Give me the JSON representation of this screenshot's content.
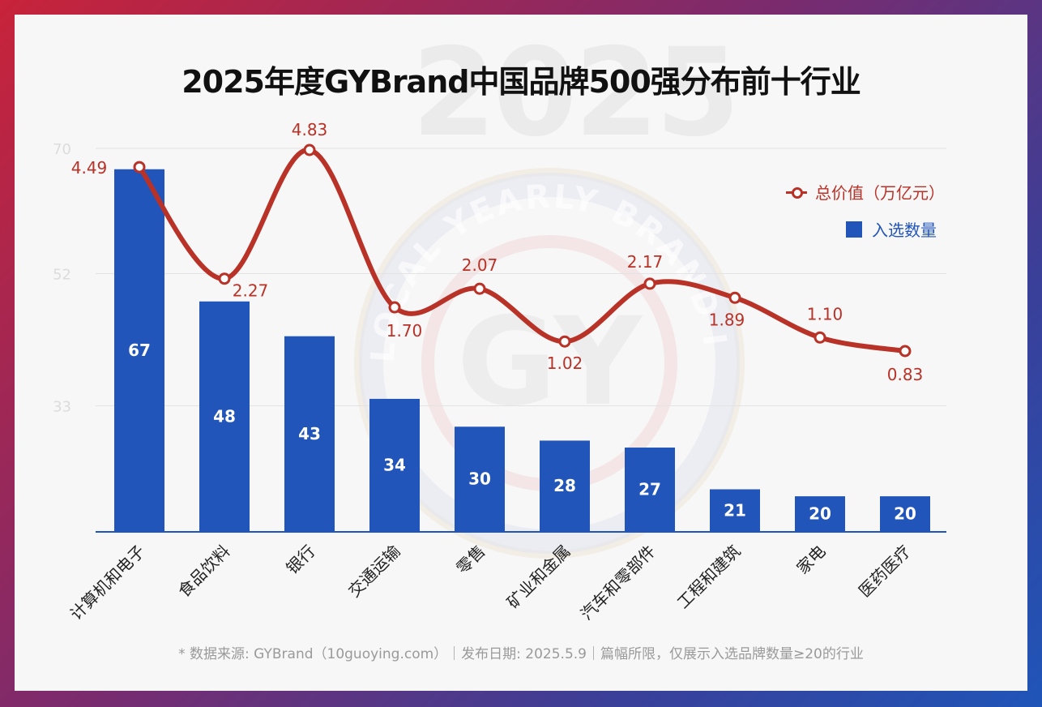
{
  "watermark": {
    "year": "2025",
    "seal_text": "LOCAL YEARLY BRAND INSTITUTE",
    "seal_mark": "GY"
  },
  "chart_data": {
    "type": "bar",
    "title": "2025年度GYBrand中国品牌500强分布前十行业",
    "categories": [
      "计算机和电子",
      "食品饮料",
      "银行",
      "交通运输",
      "零售",
      "矿业和金属",
      "汽车和零部件",
      "工程和建筑",
      "家电",
      "医药医疗"
    ],
    "series": [
      {
        "name": "入选数量",
        "kind": "bar",
        "color": "#2155b9",
        "values": [
          67,
          48,
          43,
          34,
          30,
          28,
          27,
          21,
          20,
          20
        ]
      },
      {
        "name": "总价值（万亿元）",
        "kind": "line",
        "color": "#b83228",
        "values": [
          4.49,
          2.27,
          4.83,
          1.7,
          2.07,
          1.02,
          2.17,
          1.89,
          1.1,
          0.83
        ]
      }
    ],
    "line_labels": [
      "4.49",
      "2.27",
      "4.83",
      "1.70",
      "2.07",
      "1.02",
      "2.17",
      "1.89",
      "1.10",
      "0.83"
    ],
    "y_ticks": [
      "33",
      "52",
      "70"
    ],
    "ylim": [
      15,
      70
    ],
    "grid": true,
    "legend_position": "top-right"
  },
  "legend": {
    "line_label": "总价值（万亿元）",
    "bar_label": "入选数量"
  },
  "footer": "* 数据来源: GYBrand（10guoying.com）｜发布日期: 2025.5.9｜篇幅所限，仅展示入选品牌数量≥20的行业"
}
